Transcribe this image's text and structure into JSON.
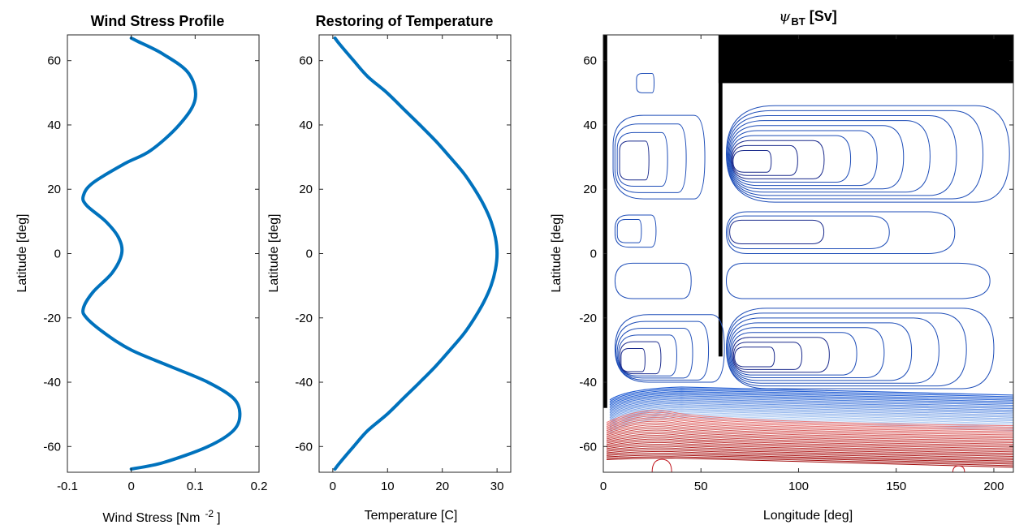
{
  "colors": {
    "profile_line": "#0072BD",
    "positive_contour": "#1f4eb8",
    "negative_contour": "#c0141c",
    "land": "#000000"
  },
  "chart_data": [
    {
      "type": "line",
      "title": "Wind Stress Profile",
      "xlabel": "Wind Stress [Nm",
      "xlabel_superscript": "-2",
      "xlabel_suffix": "]",
      "ylabel": "Latitude [deg]",
      "xlim": [
        -0.1,
        0.2
      ],
      "ylim": [
        -68,
        68
      ],
      "xticks": [
        "-0.1",
        "0",
        "0.1",
        "0.2"
      ],
      "yticks": [
        "-60",
        "-40",
        "-20",
        "0",
        "20",
        "40",
        "60"
      ],
      "series": [
        {
          "x": [
            0.0,
            0.05,
            0.12,
            0.16,
            0.17,
            0.16,
            0.12,
            0.06,
            0.0,
            -0.04,
            -0.07,
            -0.075,
            -0.06,
            -0.03,
            -0.015,
            -0.02,
            -0.04,
            -0.07,
            -0.075,
            -0.06,
            -0.01,
            0.03,
            0.075,
            0.1,
            0.09,
            0.05,
            0.01,
            0.0
          ],
          "y": [
            -67,
            -65,
            -60,
            -55,
            -50,
            -45,
            -40,
            -35,
            -30,
            -25,
            -20,
            -17,
            -12,
            -6,
            0,
            5,
            10,
            15,
            18,
            22,
            28,
            32,
            40,
            48,
            56,
            62,
            66,
            67
          ]
        }
      ]
    },
    {
      "type": "line",
      "title": "Restoring of Temperature",
      "xlabel": "Temperature [C]",
      "ylabel": "Latitude [deg]",
      "xlim": [
        -2.5,
        32.5
      ],
      "ylim": [
        -68,
        68
      ],
      "xticks": [
        "0",
        "10",
        "20",
        "30"
      ],
      "yticks": [
        "-60",
        "-40",
        "-20",
        "0",
        "20",
        "40",
        "60"
      ],
      "series": [
        {
          "x": [
            0.4,
            1.3,
            3.8,
            6.4,
            9.9,
            12.9,
            15.9,
            18.8,
            21.4,
            23.9,
            25.9,
            27.6,
            28.9,
            29.7,
            30.0,
            29.7,
            28.9,
            27.6,
            25.9,
            23.9,
            21.4,
            18.8,
            15.9,
            12.9,
            9.9,
            6.4,
            3.8,
            1.3,
            0.4
          ],
          "y": [
            -67,
            -65,
            -60,
            -55,
            -50,
            -45,
            -40,
            -35,
            -30,
            -25,
            -20,
            -15,
            -10,
            -5,
            0,
            5,
            10,
            15,
            20,
            25,
            30,
            35,
            40,
            45,
            50,
            55,
            60,
            65,
            67
          ]
        }
      ]
    },
    {
      "type": "contour",
      "title": "ψ",
      "title_subscript": "BT",
      "title_suffix": "[Sv]",
      "xlabel": "Longitude [deg]",
      "ylabel": "Latitude [deg]",
      "xlim": [
        0,
        210
      ],
      "ylim": [
        -68,
        68
      ],
      "xticks": [
        "0",
        "50",
        "100",
        "150",
        "200"
      ],
      "yticks": [
        "-60",
        "-40",
        "-20",
        "0",
        "20",
        "40",
        "60"
      ],
      "land": [
        {
          "x": [
            0,
            2
          ],
          "y": [
            -48,
            68
          ]
        },
        {
          "x": [
            59,
            61
          ],
          "y": [
            -32,
            68
          ]
        },
        {
          "x": [
            59,
            210
          ],
          "y": [
            53,
            68
          ]
        }
      ],
      "positive_gyres": [
        {
          "x": [
            5,
            52
          ],
          "y": [
            17,
            43
          ],
          "center": [
            10,
            28
          ],
          "levels": 4
        },
        {
          "x": [
            63,
            208
          ],
          "y": [
            16,
            46
          ],
          "center": [
            67,
            28
          ],
          "levels": 10
        },
        {
          "x": [
            6,
            27
          ],
          "y": [
            2,
            12
          ],
          "center": [
            9,
            7
          ],
          "levels": 2
        },
        {
          "x": [
            63,
            180
          ],
          "y": [
            0,
            13
          ],
          "center": [
            66,
            7
          ],
          "levels": 3
        },
        {
          "x": [
            6,
            45
          ],
          "y": [
            -14,
            -3
          ],
          "center": [
            10,
            -8
          ],
          "levels": 1
        },
        {
          "x": [
            63,
            198
          ],
          "y": [
            -14,
            -3
          ],
          "center": [
            66,
            -8
          ],
          "levels": 1
        },
        {
          "x": [
            6,
            62
          ],
          "y": [
            -40,
            -19
          ],
          "center": [
            10,
            -35
          ],
          "levels": 6
        },
        {
          "x": [
            63,
            200
          ],
          "y": [
            -42,
            -17
          ],
          "center": [
            68,
            -33
          ],
          "levels": 9
        },
        {
          "x": [
            17,
            26
          ],
          "y": [
            50,
            56
          ],
          "center": [
            21,
            53
          ],
          "levels": 1
        }
      ],
      "acc_band": {
        "y_top": -42,
        "y_mid": -52,
        "y_bottom": -64
      },
      "negative_patches": [
        {
          "x": [
            25,
            35
          ],
          "y": [
            -68,
            -64
          ]
        },
        {
          "x": [
            179,
            185
          ],
          "y": [
            -68,
            -66
          ]
        }
      ]
    }
  ]
}
